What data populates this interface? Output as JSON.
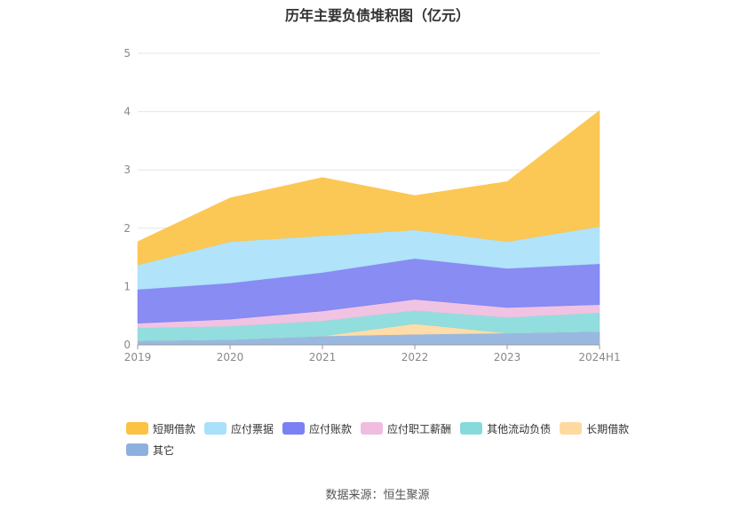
{
  "source_text": "数据来源：恒生聚源",
  "chart_data": {
    "type": "area",
    "stacked": true,
    "title": "历年主要负债堆积图（亿元）",
    "categories": [
      "2019",
      "2020",
      "2021",
      "2022",
      "2023",
      "2024H1"
    ],
    "ylim": [
      0,
      5
    ],
    "yticks": [
      "0",
      "1",
      "2",
      "3",
      "4",
      "5"
    ],
    "grid": true,
    "legend_position": "bottom",
    "series": [
      {
        "name": "其它",
        "color": "#8eb0de",
        "values": [
          0.07,
          0.09,
          0.15,
          0.18,
          0.2,
          0.23
        ]
      },
      {
        "name": "长期借款",
        "color": "#ffd9a0",
        "values": [
          0.0,
          0.0,
          0.0,
          0.18,
          0.0,
          0.0
        ]
      },
      {
        "name": "其他流动负债",
        "color": "#86dadb",
        "values": [
          0.22,
          0.23,
          0.26,
          0.23,
          0.27,
          0.32
        ]
      },
      {
        "name": "应付职工薪酬",
        "color": "#f0bde0",
        "values": [
          0.08,
          0.12,
          0.17,
          0.19,
          0.17,
          0.14
        ]
      },
      {
        "name": "应付账款",
        "color": "#7b80f2",
        "values": [
          0.58,
          0.62,
          0.66,
          0.7,
          0.67,
          0.7
        ]
      },
      {
        "name": "应付票据",
        "color": "#a9e0fa",
        "values": [
          0.42,
          0.71,
          0.63,
          0.49,
          0.46,
          0.64
        ]
      },
      {
        "name": "短期借款",
        "color": "#fcc243",
        "values": [
          0.4,
          0.75,
          1.0,
          0.59,
          1.03,
          1.99
        ]
      }
    ],
    "legend_order": [
      "短期借款",
      "应付票据",
      "应付账款",
      "应付职工薪酬",
      "其他流动负债",
      "长期借款",
      "其它"
    ]
  }
}
